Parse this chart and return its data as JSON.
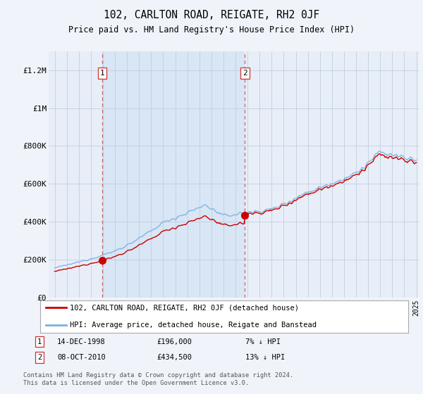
{
  "title": "102, CARLTON ROAD, REIGATE, RH2 0JF",
  "subtitle": "Price paid vs. HM Land Registry's House Price Index (HPI)",
  "footer": "Contains HM Land Registry data © Crown copyright and database right 2024.\nThis data is licensed under the Open Government Licence v3.0.",
  "legend_line1": "102, CARLTON ROAD, REIGATE, RH2 0JF (detached house)",
  "legend_line2": "HPI: Average price, detached house, Reigate and Banstead",
  "sale1_label": "1",
  "sale1_date": "14-DEC-1998",
  "sale1_price": "£196,000",
  "sale1_hpi": "7% ↓ HPI",
  "sale2_label": "2",
  "sale2_date": "08-OCT-2010",
  "sale2_price": "£434,500",
  "sale2_hpi": "13% ↓ HPI",
  "sale1_x": 1998.95,
  "sale1_y": 196000,
  "sale2_x": 2010.78,
  "sale2_y": 434500,
  "hpi_color": "#7ab0e0",
  "price_color": "#cc0000",
  "marker_color": "#cc0000",
  "shade_color": "#ddeeff",
  "background_color": "#f5f8ff",
  "plot_bg_color": "#eef3fa",
  "grid_color": "#c8d8e8",
  "ylim": [
    0,
    1300000
  ],
  "xlim": [
    1994.5,
    2025.2
  ],
  "yticks": [
    0,
    200000,
    400000,
    600000,
    800000,
    1000000,
    1200000
  ],
  "ytick_labels": [
    "£0",
    "£200K",
    "£400K",
    "£600K",
    "£800K",
    "£1M",
    "£1.2M"
  ],
  "xticks": [
    1995,
    1996,
    1997,
    1998,
    1999,
    2000,
    2001,
    2002,
    2003,
    2004,
    2005,
    2006,
    2007,
    2008,
    2009,
    2010,
    2011,
    2012,
    2013,
    2014,
    2015,
    2016,
    2017,
    2018,
    2019,
    2020,
    2021,
    2022,
    2023,
    2024,
    2025
  ]
}
